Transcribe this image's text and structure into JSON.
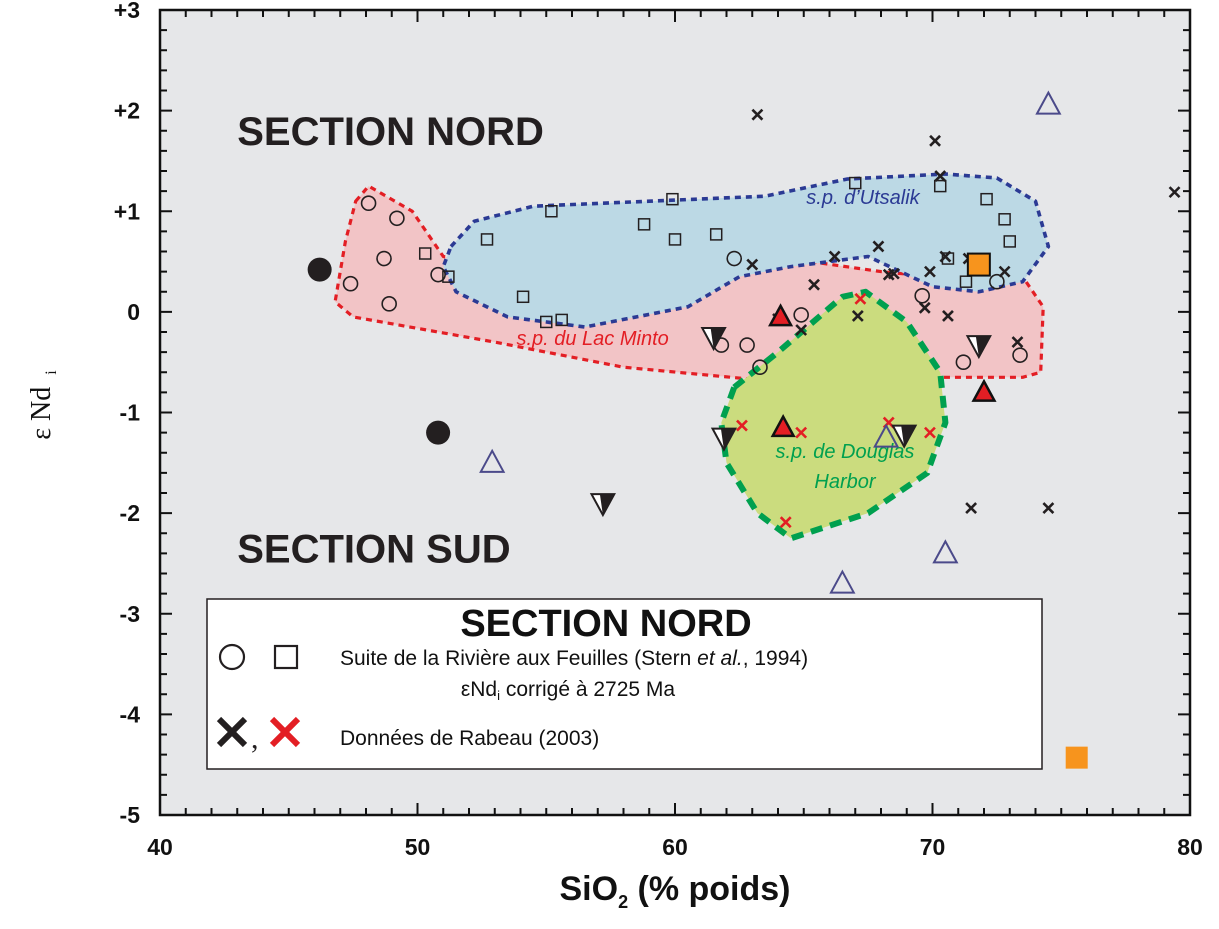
{
  "chart_data": {
    "type": "scatter",
    "xlabel": "SiO",
    "xlabel_sub": "2",
    "xlabel_rest": " (% poids)",
    "ylabel": "ε Nd",
    "ylabel_sub": "i",
    "xlim": [
      40,
      80
    ],
    "ylim": [
      -5,
      3
    ],
    "x_ticks": [
      40,
      50,
      60,
      70,
      80
    ],
    "y_ticks": [
      {
        "value": 3,
        "label": "+3"
      },
      {
        "value": 2,
        "label": "+2"
      },
      {
        "value": 1,
        "label": "+1"
      },
      {
        "value": 0,
        "label": "0"
      },
      {
        "value": -1,
        "label": "-1"
      },
      {
        "value": -2,
        "label": "-2"
      },
      {
        "value": -3,
        "label": "-3"
      },
      {
        "value": -4,
        "label": "-4"
      },
      {
        "value": -5,
        "label": "-5"
      }
    ],
    "background": "#e6e7e9",
    "annotations": [
      {
        "id": "nord",
        "text": "SECTION NORD",
        "x": 43,
        "y": 1.8
      },
      {
        "id": "sud",
        "text": "SECTION SUD",
        "x": 43,
        "y": -2.35
      }
    ],
    "regions": [
      {
        "name": "s.p. du Lac Minto",
        "label": "s.p. du Lac Minto",
        "label_x": 56.8,
        "label_y": -0.33,
        "fill": "#f2c4c6",
        "stroke": "#e31e24",
        "polygon": [
          [
            47.6,
            1.1
          ],
          [
            48.1,
            1.25
          ],
          [
            49.8,
            1.0
          ],
          [
            51,
            0.55
          ],
          [
            54.3,
            0.44
          ],
          [
            58.5,
            0.6
          ],
          [
            62.5,
            0.6
          ],
          [
            68,
            0.4
          ],
          [
            72,
            0.3
          ],
          [
            73.5,
            0.35
          ],
          [
            74.3,
            0.05
          ],
          [
            74.2,
            -0.6
          ],
          [
            73.5,
            -0.65
          ],
          [
            68,
            -0.65
          ],
          [
            63,
            -0.67
          ],
          [
            58,
            -0.55
          ],
          [
            53,
            -0.3
          ],
          [
            47.5,
            -0.05
          ],
          [
            46.8,
            0.1
          ],
          [
            47.2,
            0.7
          ]
        ]
      },
      {
        "name": "s.p. d'Utsalik",
        "label": "s.p. d’Utsalik",
        "label_x": 67.3,
        "label_y": 1.07,
        "fill": "#bcd9e5",
        "stroke": "#2b3a94",
        "polygon": [
          [
            51.3,
            0.65
          ],
          [
            52.2,
            0.9
          ],
          [
            54.5,
            1.05
          ],
          [
            59,
            1.1
          ],
          [
            63.5,
            1.15
          ],
          [
            66.7,
            1.32
          ],
          [
            70.5,
            1.37
          ],
          [
            72.5,
            1.33
          ],
          [
            74,
            1.1
          ],
          [
            74.5,
            0.65
          ],
          [
            73.5,
            0.3
          ],
          [
            71.8,
            0.2
          ],
          [
            70,
            0.25
          ],
          [
            67.5,
            0.55
          ],
          [
            64.5,
            0.45
          ],
          [
            62.5,
            0.35
          ],
          [
            60.5,
            0.05
          ],
          [
            56.5,
            -0.15
          ],
          [
            53.5,
            -0.05
          ],
          [
            51.5,
            0.2
          ],
          [
            51,
            0.45
          ]
        ]
      },
      {
        "name": "s.p. de Douglas Harbor",
        "label": "s.p. de Douglas",
        "label2": "Harbor",
        "label_x": 66.6,
        "label_y": -1.45,
        "label2_y": -1.75,
        "fill": "#cbdc7e",
        "stroke": "#00a04f",
        "polygon": [
          [
            62.3,
            -0.75
          ],
          [
            64,
            -0.4
          ],
          [
            66.5,
            0.15
          ],
          [
            67.4,
            0.2
          ],
          [
            69,
            -0.1
          ],
          [
            70.3,
            -0.6
          ],
          [
            70.5,
            -1.1
          ],
          [
            69.8,
            -1.6
          ],
          [
            67.5,
            -2.0
          ],
          [
            64.5,
            -2.25
          ],
          [
            63.2,
            -2.0
          ],
          [
            62,
            -1.5
          ],
          [
            61.8,
            -1.1
          ]
        ]
      }
    ],
    "series": [
      {
        "name": "Suite de la Rivière aux Feuilles (cercles)",
        "marker": "open-circle",
        "color": "#231f20",
        "points": [
          [
            47.4,
            0.28
          ],
          [
            48.1,
            1.08
          ],
          [
            48.7,
            0.53
          ],
          [
            49.2,
            0.93
          ],
          [
            48.9,
            0.08
          ],
          [
            50.8,
            0.37
          ],
          [
            61.8,
            -0.33
          ],
          [
            62.3,
            0.53
          ],
          [
            62.8,
            -0.33
          ],
          [
            63.3,
            -0.55
          ],
          [
            64.9,
            -0.03
          ],
          [
            69.6,
            0.16
          ],
          [
            71.2,
            -0.5
          ],
          [
            72.5,
            0.3
          ],
          [
            73.4,
            -0.43
          ]
        ]
      },
      {
        "name": "Suite de la Rivière aux Feuilles (carrés)",
        "marker": "open-square",
        "color": "#231f20",
        "points": [
          [
            50.3,
            0.58
          ],
          [
            51.2,
            0.35
          ],
          [
            52.7,
            0.72
          ],
          [
            54.1,
            0.15
          ],
          [
            55.0,
            -0.1
          ],
          [
            55.2,
            1.0
          ],
          [
            55.6,
            -0.08
          ],
          [
            58.8,
            0.87
          ],
          [
            59.9,
            1.12
          ],
          [
            60.0,
            0.72
          ],
          [
            61.6,
            0.77
          ],
          [
            67,
            1.28
          ],
          [
            70.3,
            1.25
          ],
          [
            70.6,
            0.53
          ],
          [
            71.3,
            0.3
          ],
          [
            72.1,
            1.12
          ],
          [
            72.8,
            0.92
          ],
          [
            73.0,
            0.7
          ]
        ]
      },
      {
        "name": "Données de Rabeau (2003) noir",
        "marker": "x",
        "color": "#231f20",
        "points": [
          [
            63.2,
            1.96
          ],
          [
            63.0,
            0.47
          ],
          [
            64.0,
            -0.07
          ],
          [
            64.9,
            -0.18
          ],
          [
            65.4,
            0.27
          ],
          [
            66.2,
            0.55
          ],
          [
            67.1,
            -0.04
          ],
          [
            67.9,
            0.65
          ],
          [
            68.3,
            0.37
          ],
          [
            68.5,
            0.38
          ],
          [
            69.7,
            0.04
          ],
          [
            69.9,
            0.4
          ],
          [
            70.1,
            1.7
          ],
          [
            70.3,
            1.35
          ],
          [
            70.5,
            0.55
          ],
          [
            70.6,
            -0.04
          ],
          [
            71.4,
            0.53
          ],
          [
            71.5,
            -1.95
          ],
          [
            72.8,
            0.4
          ],
          [
            73.3,
            -0.3
          ],
          [
            74.5,
            -1.95
          ],
          [
            79.4,
            1.19
          ]
        ]
      },
      {
        "name": "Données de Rabeau (2003) rouge",
        "marker": "x",
        "color": "#e31e24",
        "points": [
          [
            62.6,
            -1.13
          ],
          [
            64.3,
            -2.09
          ],
          [
            64.9,
            -1.2
          ],
          [
            67.2,
            0.13
          ],
          [
            68.3,
            -1.1
          ],
          [
            69.9,
            -1.2
          ]
        ]
      },
      {
        "name": "Cercles pleins",
        "marker": "filled-circle",
        "color": "#231f20",
        "points": [
          [
            46.2,
            0.42
          ],
          [
            50.8,
            -1.2
          ]
        ]
      },
      {
        "name": "Triangles ouverts",
        "marker": "open-triangle-up",
        "color": "#4b4a8a",
        "points": [
          [
            52.9,
            -1.5
          ],
          [
            66.5,
            -2.7
          ],
          [
            68.2,
            -1.25
          ],
          [
            70.5,
            -2.4
          ],
          [
            74.5,
            2.06
          ]
        ]
      },
      {
        "name": "Triangles rouges",
        "marker": "red-triangle-up",
        "color": "#e31e24",
        "points": [
          [
            64.1,
            -0.05
          ],
          [
            64.2,
            -1.15
          ],
          [
            72,
            -0.8
          ]
        ]
      },
      {
        "name": "Triangles inversés",
        "marker": "triangle-down",
        "color": "#231f20",
        "points": [
          [
            57.2,
            -1.9
          ],
          [
            61.5,
            -0.25
          ],
          [
            61.9,
            -1.25
          ],
          [
            68.9,
            -1.22
          ],
          [
            71.8,
            -0.33
          ]
        ]
      },
      {
        "name": "Carrés orange",
        "marker": "orange-square",
        "color": "#f7941d",
        "points": [
          [
            71.8,
            0.47
          ],
          [
            75.6,
            -4.43
          ]
        ]
      }
    ],
    "legend": {
      "title": "SECTION NORD",
      "placement": "bottom-left",
      "entry1": "Suite de la Rivière aux Feuilles (Stern ",
      "entry1_italic": "et al.",
      "entry1_end": ", 1994)",
      "entry1b": "εNd",
      "entry1b_sub": "i",
      "entry1b_rest": " corrigé à 2725 Ma",
      "entry2": "Données de Rabeau (2003)",
      "comma": ","
    }
  }
}
